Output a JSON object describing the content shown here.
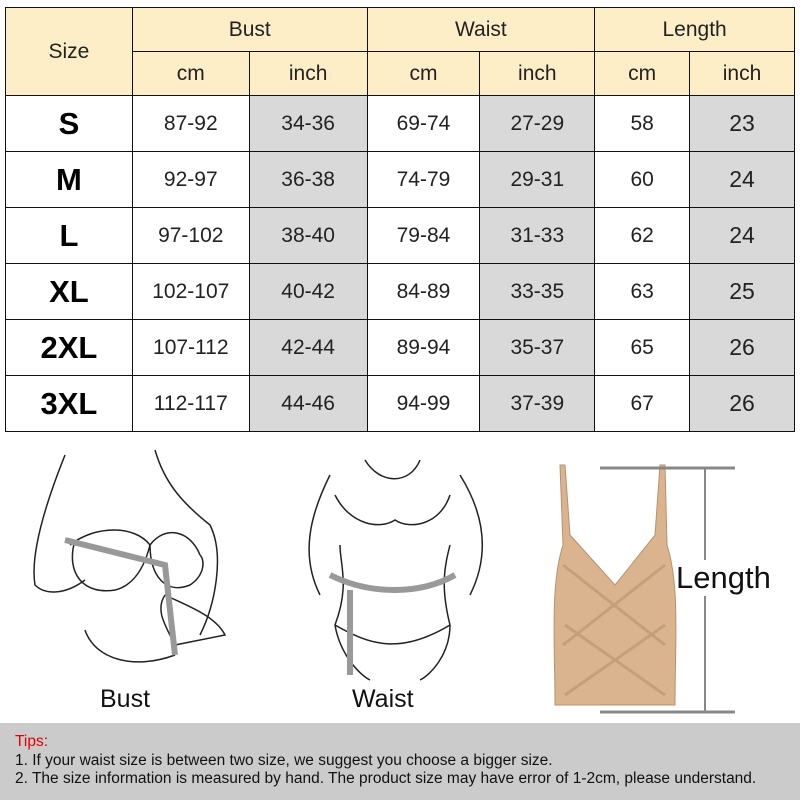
{
  "table": {
    "size_header": "Size",
    "groups": [
      "Bust",
      "Waist",
      "Length"
    ],
    "units": [
      "cm",
      "inch",
      "cm",
      "inch",
      "cm",
      "inch"
    ],
    "rows": [
      {
        "size": "S",
        "values": [
          "87-92",
          "34-36",
          "69-74",
          "27-29",
          "58",
          "23"
        ]
      },
      {
        "size": "M",
        "values": [
          "92-97",
          "36-38",
          "74-79",
          "29-31",
          "60",
          "24"
        ]
      },
      {
        "size": "L",
        "values": [
          "97-102",
          "38-40",
          "79-84",
          "31-33",
          "62",
          "24"
        ]
      },
      {
        "size": "XL",
        "values": [
          "102-107",
          "40-42",
          "84-89",
          "33-35",
          "63",
          "25"
        ]
      },
      {
        "size": "2XL",
        "values": [
          "107-112",
          "42-44",
          "89-94",
          "35-37",
          "65",
          "26"
        ]
      },
      {
        "size": "3XL",
        "values": [
          "112-117",
          "44-46",
          "94-99",
          "37-39",
          "67",
          "26"
        ]
      }
    ]
  },
  "illustrations": {
    "bust_label": "Bust",
    "waist_label": "Waist",
    "length_label": "Length"
  },
  "tips": {
    "title": "Tips:",
    "items": [
      "1. If your waist size is between two size, we suggest you choose a bigger size.",
      "2. The size information is measured by hand. The product size may have error of 1-2cm, please understand."
    ]
  },
  "colors": {
    "header_bg": "#fdeec8",
    "inch_bg": "#d9d9d9",
    "tips_bg": "#cbcbcb",
    "tips_title": "#e00000",
    "garment": "#d9b48f"
  }
}
